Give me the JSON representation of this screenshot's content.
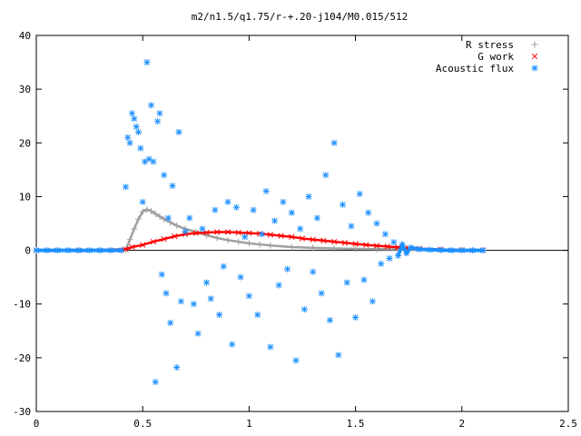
{
  "chart_data": {
    "type": "scatter",
    "title": "m2/n1.5/q1.75/r-+.20-j104/M0.015/512",
    "xlabel": "",
    "ylabel": "",
    "xlim": [
      0,
      2.5
    ],
    "ylim": [
      -30,
      40
    ],
    "x_ticks": [
      "0",
      "0.5",
      "1",
      "1.5",
      "2",
      "2.5"
    ],
    "y_ticks": [
      "-30",
      "-20",
      "-10",
      "0",
      "10",
      "20",
      "30",
      "40"
    ],
    "grid": false,
    "legend_position": "top-right",
    "series": [
      {
        "name": "R stress",
        "marker": "+",
        "color": "#a0a0a0",
        "points": [
          [
            0.0,
            0
          ],
          [
            0.1,
            0
          ],
          [
            0.2,
            0
          ],
          [
            0.3,
            0
          ],
          [
            0.4,
            0
          ],
          [
            0.42,
            0.1
          ],
          [
            0.44,
            2.0
          ],
          [
            0.46,
            4.0
          ],
          [
            0.48,
            5.8
          ],
          [
            0.5,
            7.2
          ],
          [
            0.52,
            7.6
          ],
          [
            0.54,
            7.3
          ],
          [
            0.56,
            6.8
          ],
          [
            0.58,
            6.3
          ],
          [
            0.6,
            5.8
          ],
          [
            0.63,
            5.2
          ],
          [
            0.66,
            4.6
          ],
          [
            0.7,
            4.0
          ],
          [
            0.75,
            3.4
          ],
          [
            0.8,
            2.8
          ],
          [
            0.85,
            2.3
          ],
          [
            0.9,
            1.9
          ],
          [
            0.95,
            1.6
          ],
          [
            1.0,
            1.3
          ],
          [
            1.05,
            1.1
          ],
          [
            1.1,
            0.9
          ],
          [
            1.2,
            0.6
          ],
          [
            1.3,
            0.45
          ],
          [
            1.4,
            0.35
          ],
          [
            1.5,
            0.28
          ],
          [
            1.6,
            0.22
          ],
          [
            1.7,
            0.18
          ],
          [
            1.8,
            0.14
          ],
          [
            1.9,
            0.1
          ],
          [
            2.0,
            0.06
          ],
          [
            2.1,
            0.03
          ]
        ]
      },
      {
        "name": "G work",
        "marker": "x",
        "color": "#ff0000",
        "points": [
          [
            0.0,
            0
          ],
          [
            0.2,
            0
          ],
          [
            0.42,
            0.2
          ],
          [
            0.45,
            0.6
          ],
          [
            0.5,
            1.0
          ],
          [
            0.55,
            1.6
          ],
          [
            0.6,
            2.1
          ],
          [
            0.65,
            2.6
          ],
          [
            0.7,
            3.0
          ],
          [
            0.75,
            3.2
          ],
          [
            0.8,
            3.3
          ],
          [
            0.85,
            3.4
          ],
          [
            0.9,
            3.4
          ],
          [
            0.95,
            3.3
          ],
          [
            1.0,
            3.2
          ],
          [
            1.05,
            3.1
          ],
          [
            1.1,
            2.9
          ],
          [
            1.15,
            2.7
          ],
          [
            1.2,
            2.5
          ],
          [
            1.25,
            2.2
          ],
          [
            1.3,
            2.0
          ],
          [
            1.35,
            1.8
          ],
          [
            1.4,
            1.6
          ],
          [
            1.45,
            1.4
          ],
          [
            1.5,
            1.2
          ],
          [
            1.55,
            1.0
          ],
          [
            1.6,
            0.85
          ],
          [
            1.65,
            0.7
          ],
          [
            1.7,
            0.55
          ],
          [
            1.75,
            0.4
          ],
          [
            1.8,
            0.3
          ],
          [
            1.9,
            0.15
          ],
          [
            2.0,
            0.05
          ],
          [
            2.1,
            0.02
          ]
        ]
      },
      {
        "name": "Acoustic flux",
        "marker": "*",
        "color": "#1e90ff",
        "points": [
          [
            0.0,
            0
          ],
          [
            0.05,
            0
          ],
          [
            0.1,
            0
          ],
          [
            0.15,
            0
          ],
          [
            0.2,
            0
          ],
          [
            0.25,
            0
          ],
          [
            0.3,
            0
          ],
          [
            0.35,
            0
          ],
          [
            0.4,
            0
          ],
          [
            0.42,
            11.8
          ],
          [
            0.43,
            21.0
          ],
          [
            0.44,
            20.0
          ],
          [
            0.45,
            25.5
          ],
          [
            0.46,
            24.5
          ],
          [
            0.47,
            23.0
          ],
          [
            0.48,
            22.0
          ],
          [
            0.49,
            19.0
          ],
          [
            0.5,
            9.0
          ],
          [
            0.51,
            16.5
          ],
          [
            0.52,
            35.0
          ],
          [
            0.53,
            17.0
          ],
          [
            0.54,
            27.0
          ],
          [
            0.55,
            16.5
          ],
          [
            0.56,
            -24.5
          ],
          [
            0.57,
            24.0
          ],
          [
            0.58,
            25.5
          ],
          [
            0.59,
            -4.5
          ],
          [
            0.6,
            14.0
          ],
          [
            0.61,
            -8.0
          ],
          [
            0.62,
            6.0
          ],
          [
            0.63,
            -13.5
          ],
          [
            0.64,
            12.0
          ],
          [
            0.66,
            -21.8
          ],
          [
            0.67,
            22.0
          ],
          [
            0.68,
            -9.5
          ],
          [
            0.7,
            3.5
          ],
          [
            0.72,
            6.0
          ],
          [
            0.74,
            -10.0
          ],
          [
            0.76,
            -15.5
          ],
          [
            0.78,
            4.0
          ],
          [
            0.8,
            -6.0
          ],
          [
            0.82,
            -9.0
          ],
          [
            0.84,
            7.5
          ],
          [
            0.86,
            -12.0
          ],
          [
            0.88,
            -3.0
          ],
          [
            0.9,
            9.0
          ],
          [
            0.92,
            -17.5
          ],
          [
            0.94,
            8.0
          ],
          [
            0.96,
            -5.0
          ],
          [
            0.98,
            2.5
          ],
          [
            1.0,
            -8.5
          ],
          [
            1.02,
            7.5
          ],
          [
            1.04,
            -12.0
          ],
          [
            1.06,
            3.0
          ],
          [
            1.08,
            11.0
          ],
          [
            1.1,
            -18.0
          ],
          [
            1.12,
            5.5
          ],
          [
            1.14,
            -6.5
          ],
          [
            1.16,
            9.0
          ],
          [
            1.18,
            -3.5
          ],
          [
            1.2,
            7.0
          ],
          [
            1.22,
            -20.5
          ],
          [
            1.24,
            4.0
          ],
          [
            1.26,
            -11.0
          ],
          [
            1.28,
            10.0
          ],
          [
            1.3,
            -4.0
          ],
          [
            1.32,
            6.0
          ],
          [
            1.34,
            -8.0
          ],
          [
            1.36,
            14.0
          ],
          [
            1.38,
            -13.0
          ],
          [
            1.4,
            20.0
          ],
          [
            1.42,
            -19.5
          ],
          [
            1.44,
            8.5
          ],
          [
            1.46,
            -6.0
          ],
          [
            1.48,
            4.5
          ],
          [
            1.5,
            -12.5
          ],
          [
            1.52,
            10.5
          ],
          [
            1.54,
            -5.5
          ],
          [
            1.56,
            7.0
          ],
          [
            1.58,
            -9.5
          ],
          [
            1.6,
            5.0
          ],
          [
            1.62,
            -2.5
          ],
          [
            1.64,
            3.0
          ],
          [
            1.66,
            -1.5
          ],
          [
            1.68,
            1.5
          ],
          [
            1.7,
            -1.0
          ],
          [
            1.72,
            1.0
          ],
          [
            1.74,
            -0.5
          ],
          [
            1.76,
            0.5
          ],
          [
            1.8,
            0.2
          ],
          [
            1.85,
            0.1
          ],
          [
            1.9,
            0.05
          ],
          [
            1.95,
            0.0
          ],
          [
            2.0,
            0.0
          ],
          [
            2.05,
            0.0
          ],
          [
            2.1,
            0.0
          ]
        ]
      }
    ]
  }
}
